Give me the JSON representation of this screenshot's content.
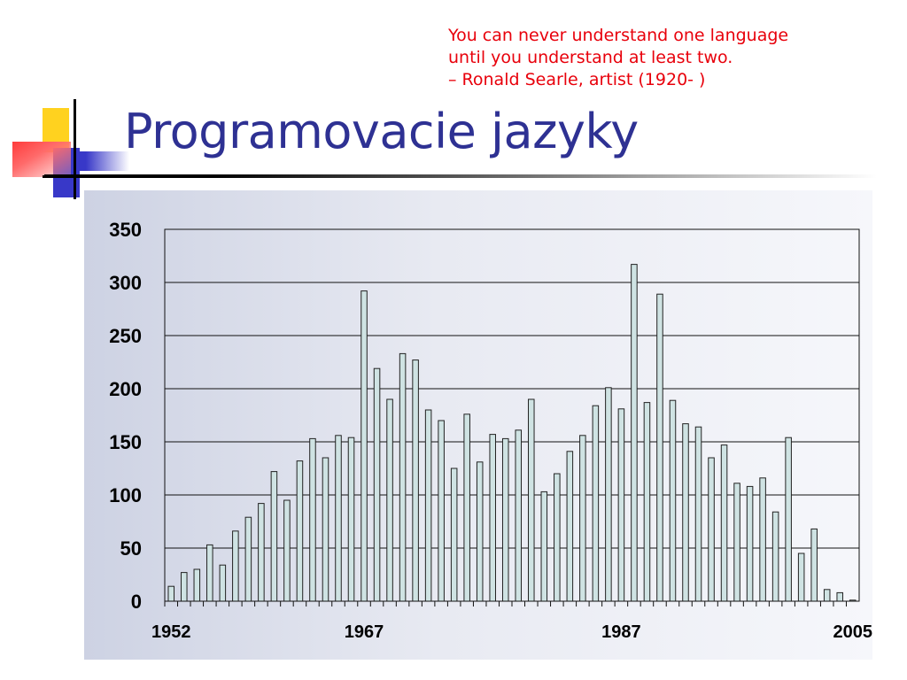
{
  "quote": {
    "line1": "You can never understand one language",
    "line2": "until you understand at least two.",
    "line3": "– Ronald Searle, artist (1920- )"
  },
  "slide": {
    "title": "Programovacie jazyky"
  },
  "colors": {
    "title": "#2e3193",
    "quote": "#e8000b",
    "bar_fill": "#cfe3e3",
    "bar_stroke": "#222222",
    "deco_yellow": "#ffd21f",
    "deco_red": "#ff3b3b",
    "deco_blue": "#3838c8"
  },
  "chart_data": {
    "type": "bar",
    "title": "",
    "xlabel": "",
    "ylabel": "",
    "ylim": [
      0,
      350
    ],
    "yticks": [
      0,
      50,
      100,
      150,
      200,
      250,
      300,
      350
    ],
    "xtick_labels": [
      "1952",
      "1967",
      "1987",
      "2005"
    ],
    "grid": "horizontal",
    "legend": "none",
    "series": [
      {
        "categories": [
          1952,
          1953,
          1954,
          1955,
          1956,
          1957,
          1958,
          1959,
          1960,
          1961,
          1962,
          1963,
          1964,
          1965,
          1966,
          1967,
          1968,
          1969,
          1970,
          1971,
          1972,
          1973,
          1974,
          1975,
          1976,
          1977,
          1978,
          1979,
          1980,
          1981,
          1982,
          1983,
          1984,
          1985,
          1986,
          1987,
          1988,
          1989,
          1990,
          1991,
          1992,
          1993,
          1994,
          1995,
          1996,
          1997,
          1998,
          1999,
          2000,
          2001,
          2002,
          2003,
          2004,
          2005
        ],
        "values": [
          14,
          27,
          30,
          53,
          34,
          66,
          79,
          92,
          122,
          95,
          132,
          153,
          135,
          156,
          154,
          292,
          219,
          190,
          233,
          227,
          180,
          170,
          125,
          176,
          131,
          157,
          153,
          161,
          190,
          103,
          120,
          141,
          156,
          184,
          201,
          181,
          317,
          187,
          289,
          189,
          167,
          164,
          135,
          147,
          111,
          108,
          116,
          84,
          154,
          45,
          68,
          11,
          8,
          1
        ]
      }
    ]
  }
}
